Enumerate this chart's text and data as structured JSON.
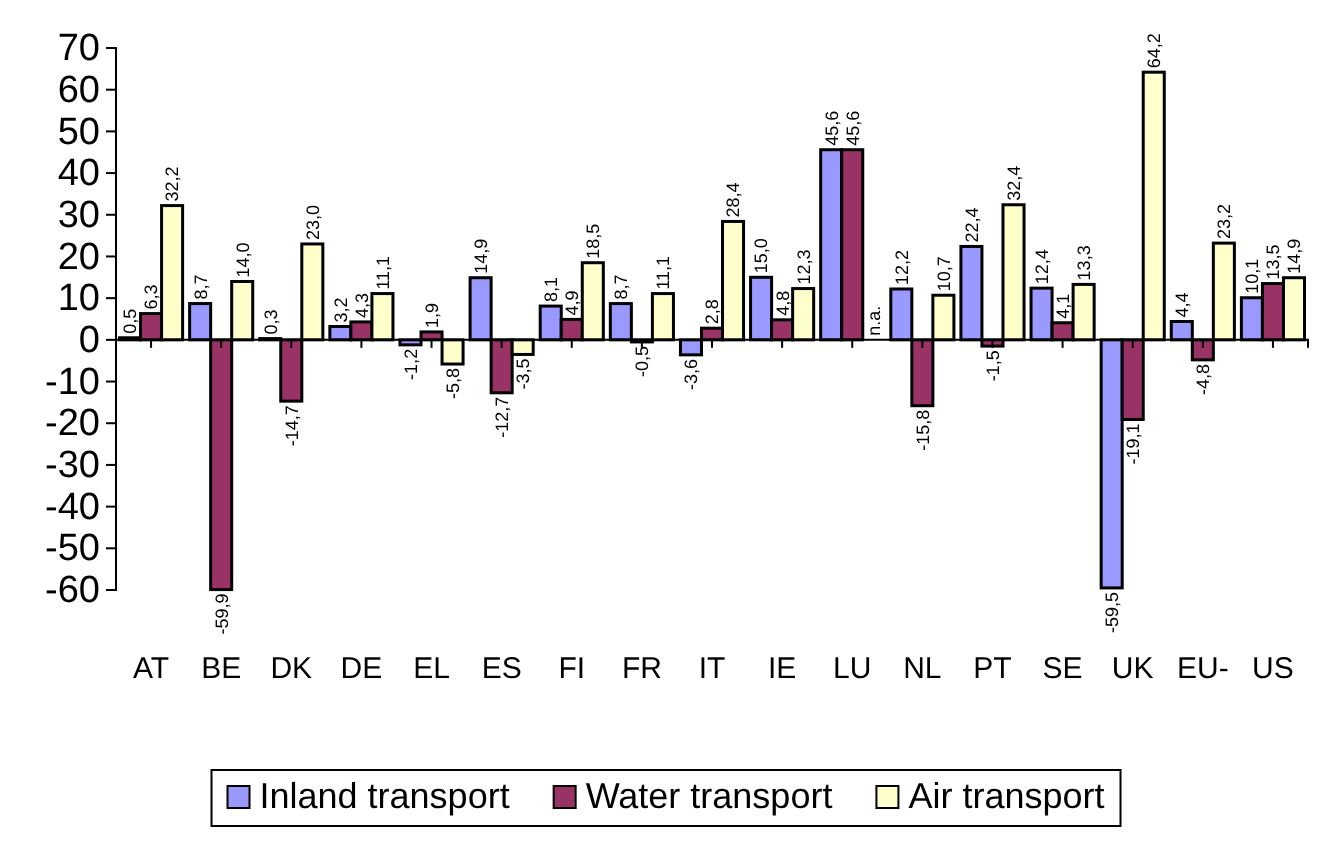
{
  "chart_data": {
    "type": "bar",
    "categories": [
      "AT",
      "BE",
      "DK",
      "DE",
      "EL",
      "ES",
      "FI",
      "FR",
      "IT",
      "IE",
      "LU",
      "NL",
      "PT",
      "SE",
      "UK",
      "EU-",
      "US"
    ],
    "series": [
      {
        "name": "Inland transport",
        "color": "#9999ff",
        "values": [
          0.5,
          8.7,
          0.3,
          3.2,
          -1.2,
          14.9,
          8.1,
          8.7,
          -3.6,
          15.0,
          45.6,
          12.2,
          22.4,
          12.4,
          -59.5,
          4.4,
          10.1
        ],
        "value_labels": [
          "0,5",
          "8,7",
          "0,3",
          "3,2",
          "-1,2",
          "14,9",
          "8,1",
          "8,7",
          "-3,6",
          "15,0",
          "45,6",
          "12,2",
          "22,4",
          "12,4",
          "-59,5",
          "4,4",
          "10,1"
        ]
      },
      {
        "name": "Water transport",
        "color": "#993366",
        "values": [
          6.3,
          -59.9,
          -14.7,
          4.3,
          1.9,
          -12.7,
          4.9,
          -0.5,
          2.8,
          4.8,
          45.6,
          -15.8,
          -1.5,
          4.1,
          -19.1,
          -4.8,
          13.5
        ],
        "value_labels": [
          "6,3",
          "-59,9",
          "-14,7",
          "4,3",
          "1,9",
          "-12,7",
          "4,9",
          "-0,5",
          "2,8",
          "4,8",
          "45,6",
          "-15,8",
          "-1,5",
          "4,1",
          "-19,1",
          "-4,8",
          "13,5"
        ]
      },
      {
        "name": "Air transport",
        "color": "#ffffcc",
        "values": [
          32.2,
          14.0,
          23.0,
          11.1,
          -5.8,
          -3.5,
          18.5,
          11.1,
          28.4,
          12.3,
          null,
          10.7,
          32.4,
          13.3,
          64.2,
          23.2,
          14.9
        ],
        "value_labels": [
          "32,2",
          "14,0",
          "23,0",
          "11,1",
          "-5,8",
          "-3,5",
          "18,5",
          "11,1",
          "28,4",
          "12,3",
          "n.a.",
          "10,7",
          "32,4",
          "13,3",
          "64,2",
          "23,2",
          "14,9"
        ]
      }
    ],
    "ylim": [
      -60,
      70
    ],
    "yticks": [
      -60,
      -50,
      -40,
      -30,
      -20,
      -10,
      0,
      10,
      20,
      30,
      40,
      50,
      60,
      70
    ],
    "grid": false,
    "legend": "bottom"
  }
}
